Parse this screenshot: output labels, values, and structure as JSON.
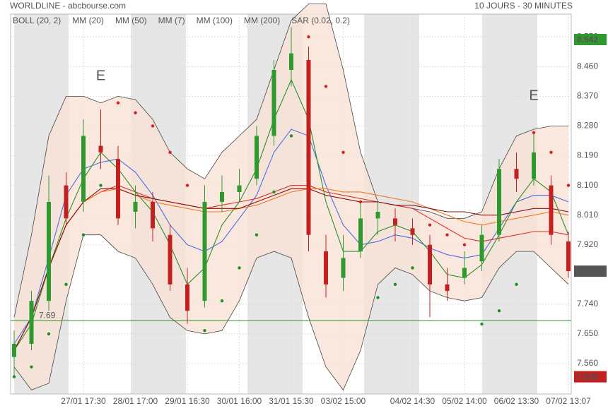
{
  "chart_data": {
    "type": "candlestick",
    "title": "WORLDLINE - abcbourse.com",
    "subtitle": "10 JOURS - 30 MINUTES",
    "categories": [
      null,
      null,
      null,
      null,
      "27/01 17:30",
      null,
      null,
      "28/01 17:00",
      null,
      null,
      "29/01 16:30",
      null,
      null,
      "30/01 16:00",
      null,
      null,
      "31/01 15:30",
      null,
      null,
      "03/02 15:00",
      null,
      null,
      null,
      "04/02 14:30",
      null,
      null,
      "05/02 14:00",
      null,
      null,
      "06/02 13:30",
      null,
      null,
      "07/02 13:07"
    ],
    "up_color": "#2e9a2e",
    "down_color": "#c3201f",
    "open": [
      7.58,
      7.62,
      7.75,
      8.1,
      8.05,
      8.22,
      8.18,
      8.02,
      8.05,
      7.95,
      7.8,
      7.75,
      8.05,
      8.08,
      8.12,
      8.25,
      8.45,
      8.48,
      7.9,
      7.82,
      7.9,
      8.0,
      8.0,
      7.97,
      7.92,
      7.8,
      7.82,
      7.87,
      7.95,
      8.15,
      8.12,
      8.1,
      7.93
    ],
    "high": [
      7.66,
      7.78,
      8.13,
      8.14,
      8.3,
      8.33,
      8.22,
      8.1,
      8.08,
      7.98,
      7.85,
      8.1,
      8.13,
      8.15,
      8.28,
      8.48,
      8.58,
      8.52,
      7.95,
      7.95,
      8.05,
      8.05,
      8.03,
      8.0,
      7.95,
      7.85,
      7.9,
      7.98,
      8.18,
      8.2,
      8.26,
      8.13,
      7.96
    ],
    "low": [
      7.52,
      7.6,
      7.72,
      7.98,
      8.02,
      8.15,
      7.98,
      7.97,
      7.93,
      7.78,
      7.68,
      7.73,
      8.02,
      8.05,
      8.1,
      8.22,
      8.4,
      7.9,
      7.76,
      7.78,
      7.88,
      7.95,
      7.93,
      7.92,
      7.7,
      7.75,
      7.8,
      7.84,
      7.93,
      8.08,
      8.1,
      7.92,
      7.82
    ],
    "close": [
      7.62,
      7.75,
      8.05,
      8.0,
      8.25,
      8.2,
      8.0,
      8.05,
      7.97,
      7.8,
      7.72,
      8.05,
      8.08,
      8.1,
      8.25,
      8.45,
      8.5,
      7.95,
      7.8,
      7.88,
      8.0,
      8.02,
      7.98,
      7.95,
      7.8,
      7.78,
      7.85,
      7.95,
      8.15,
      8.12,
      8.2,
      7.95,
      7.84
    ],
    "bollinger": {
      "name": "BOLL (20, 2)",
      "color": "#444444",
      "fill": "#f9e2d6",
      "upper": [
        7.7,
        7.95,
        8.25,
        8.37,
        8.37,
        8.35,
        8.37,
        8.36,
        8.3,
        8.2,
        8.15,
        8.12,
        8.2,
        8.25,
        8.3,
        8.45,
        8.6,
        8.65,
        8.65,
        8.45,
        8.2,
        8.05,
        8.04,
        8.03,
        8.02,
        8.0,
        8.0,
        8.02,
        8.15,
        8.25,
        8.27,
        8.28,
        8.28
      ],
      "lower": [
        7.55,
        7.48,
        7.5,
        7.75,
        7.95,
        7.95,
        7.9,
        7.88,
        7.8,
        7.7,
        7.66,
        7.65,
        7.66,
        7.75,
        7.88,
        7.9,
        7.88,
        7.7,
        7.55,
        7.48,
        7.6,
        7.8,
        7.85,
        7.83,
        7.78,
        7.76,
        7.75,
        7.76,
        7.85,
        7.9,
        7.9,
        7.85,
        7.8
      ]
    },
    "moving_averages": [
      {
        "name": "MM (20)",
        "color": "#4a6fe0",
        "values": [
          7.62,
          7.7,
          7.88,
          8.07,
          8.15,
          8.17,
          8.18,
          8.14,
          8.07,
          7.98,
          7.92,
          7.9,
          7.93,
          8.0,
          8.07,
          8.2,
          8.27,
          8.25,
          8.1,
          7.98,
          7.92,
          7.93,
          7.95,
          7.94,
          7.91,
          7.89,
          7.88,
          7.89,
          7.97,
          8.05,
          8.07,
          8.07,
          8.05
        ]
      },
      {
        "name": "MM (50)",
        "color": "#e0302a",
        "values": [
          7.6,
          7.7,
          7.85,
          7.98,
          8.05,
          8.08,
          8.1,
          8.08,
          8.06,
          8.05,
          8.04,
          8.03,
          8.04,
          8.05,
          8.06,
          8.08,
          8.1,
          8.1,
          8.08,
          8.07,
          8.06,
          8.05,
          8.04,
          8.03,
          8.0,
          7.97,
          7.94,
          7.93,
          7.94,
          7.95,
          7.96,
          7.96,
          7.95
        ]
      },
      {
        "name": "MM (7)",
        "color": "#2a8f2a",
        "values": [
          7.6,
          7.68,
          7.85,
          8.0,
          8.12,
          8.2,
          8.15,
          8.08,
          8.02,
          7.92,
          7.8,
          7.85,
          7.98,
          8.05,
          8.15,
          8.3,
          8.42,
          8.3,
          8.05,
          7.9,
          7.9,
          7.96,
          7.98,
          7.96,
          7.9,
          7.83,
          7.82,
          7.86,
          7.95,
          8.05,
          8.12,
          8.08,
          7.95
        ]
      },
      {
        "name": "MM (100)",
        "color": "#f07a22",
        "values": [
          7.6,
          7.7,
          7.85,
          7.98,
          8.05,
          8.08,
          8.09,
          8.07,
          8.05,
          8.04,
          8.03,
          8.02,
          8.02,
          8.03,
          8.04,
          8.06,
          8.08,
          8.09,
          8.09,
          8.08,
          8.08,
          8.07,
          8.06,
          8.05,
          8.03,
          8.01,
          7.99,
          7.98,
          7.99,
          8.0,
          8.01,
          8.02,
          8.01
        ]
      },
      {
        "name": "MM (200)",
        "color": "#8b1010",
        "values": [
          7.6,
          7.7,
          7.85,
          7.98,
          8.05,
          8.09,
          8.09,
          8.07,
          8.06,
          8.05,
          8.04,
          8.03,
          8.03,
          8.03,
          8.05,
          8.07,
          8.09,
          8.09,
          8.07,
          8.06,
          8.05,
          8.05,
          8.04,
          8.04,
          8.03,
          8.02,
          8.02,
          8.01,
          8.01,
          8.02,
          8.03,
          8.03,
          8.02
        ]
      }
    ],
    "sar": {
      "name": "SAR (0.02, 0.2)",
      "up_color": "#1f8f1f",
      "down_color": "#d42020",
      "values": [
        7.52,
        7.55,
        7.65,
        7.8,
        7.95,
        8.1,
        8.35,
        8.32,
        8.28,
        8.2,
        8.1,
        7.66,
        7.75,
        7.85,
        7.95,
        8.08,
        8.25,
        8.55,
        8.4,
        8.2,
        8.05,
        7.76,
        7.8,
        7.85,
        7.98,
        7.95,
        7.92,
        7.68,
        7.72,
        7.8,
        8.26,
        8.2,
        8.1
      ]
    },
    "level": {
      "value": 7.69,
      "color": "#2a8f2a"
    },
    "annotations": [
      {
        "text": "E",
        "index": 5,
        "value": 8.43
      },
      {
        "text": "E",
        "index": 30,
        "value": 8.37
      }
    ],
    "price_tags": [
      {
        "value": 8.542,
        "color": "#2e9a2e"
      },
      {
        "value": 7.84,
        "label": "7.840",
        "color": "#555555"
      },
      {
        "value": 7.52,
        "label": "7.520",
        "color": "#c3201f"
      }
    ],
    "ylim": [
      7.468,
      8.619
    ],
    "yticks": [
      {
        "value": 7.56,
        "label": "7.560"
      },
      {
        "value": 7.65,
        "label": "7.650"
      },
      {
        "value": 7.74,
        "label": "7.740"
      },
      {
        "value": 7.92,
        "label": "7.920"
      },
      {
        "value": 8.01,
        "label": "8.010"
      },
      {
        "value": 8.1,
        "label": "8.100"
      },
      {
        "value": 8.19,
        "label": "8.190"
      },
      {
        "value": 8.28,
        "label": "8.280"
      },
      {
        "value": 8.37,
        "label": "8.370"
      },
      {
        "value": 8.46,
        "label": "8.460"
      },
      {
        "value": 8.55,
        "label": "8.550"
      }
    ],
    "grid": true
  }
}
